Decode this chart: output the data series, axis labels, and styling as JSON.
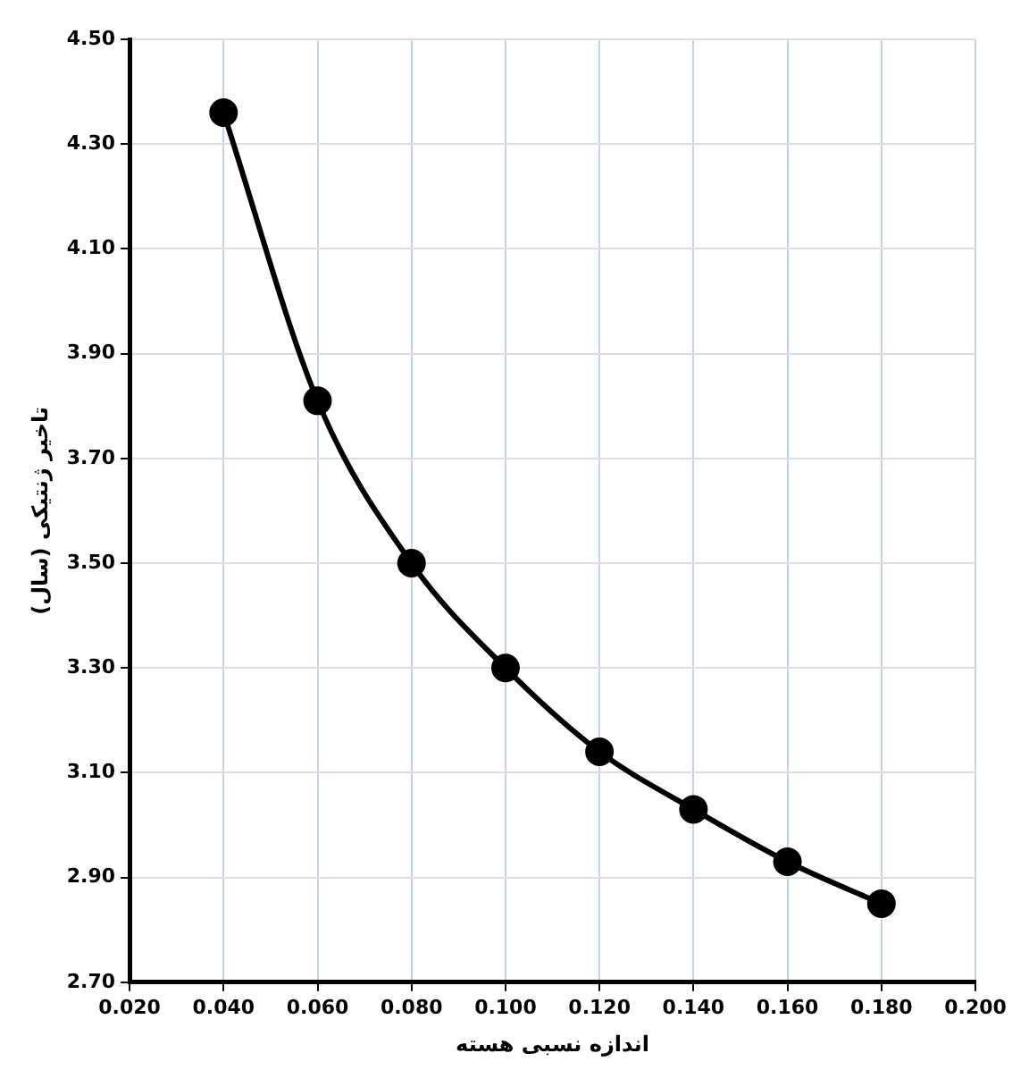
{
  "chart_data": {
    "type": "line",
    "xlabel": "اندازه نسبی هسته",
    "ylabel": "تاخیر ژنتیکی (سال)",
    "x": [
      0.04,
      0.06,
      0.08,
      0.1,
      0.12,
      0.14,
      0.16,
      0.18
    ],
    "series": [
      {
        "color": "#000000",
        "values": [
          4.36,
          3.81,
          3.5,
          3.3,
          3.14,
          3.03,
          2.93,
          2.85
        ]
      }
    ],
    "xlim": [
      0.02,
      0.2
    ],
    "xticks": [
      {
        "value": 0.02,
        "label": "0.020"
      },
      {
        "value": 0.04,
        "label": "0.040"
      },
      {
        "value": 0.06,
        "label": "0.060"
      },
      {
        "value": 0.08,
        "label": "0.080"
      },
      {
        "value": 0.1,
        "label": "0.100"
      },
      {
        "value": 0.12,
        "label": "0.120"
      },
      {
        "value": 0.14,
        "label": "0.140"
      },
      {
        "value": 0.16,
        "label": "0.160"
      },
      {
        "value": 0.18,
        "label": "0.180"
      },
      {
        "value": 0.2,
        "label": "0.200"
      }
    ],
    "ylim": [
      2.7,
      4.5
    ],
    "yticks": [
      {
        "value": 2.7,
        "label": "2.70"
      },
      {
        "value": 2.9,
        "label": "2.90"
      },
      {
        "value": 3.1,
        "label": "3.10"
      },
      {
        "value": 3.3,
        "label": "3.30"
      },
      {
        "value": 3.5,
        "label": "3.50"
      },
      {
        "value": 3.7,
        "label": "3.70"
      },
      {
        "value": 3.9,
        "label": "3.90"
      },
      {
        "value": 4.1,
        "label": "4.10"
      },
      {
        "value": 4.3,
        "label": "4.30"
      },
      {
        "value": 4.5,
        "label": "4.50"
      }
    ],
    "grid": true,
    "marker": "circle",
    "line_style": "solid",
    "legend": false
  }
}
